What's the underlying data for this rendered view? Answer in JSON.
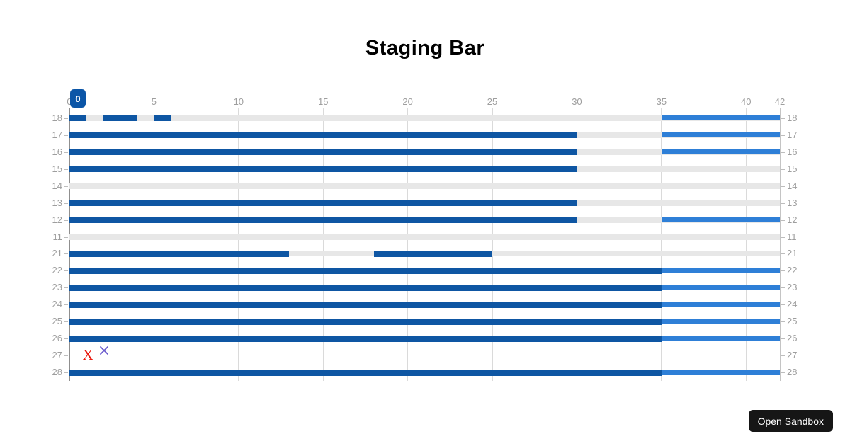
{
  "page": {
    "title": "Staging Bar"
  },
  "badge": {
    "label": "0"
  },
  "sandbox_button": {
    "label": "Open Sandbox"
  },
  "chart_data": {
    "type": "bar",
    "orientation": "horizontal",
    "title": "Staging Bar",
    "legend": "none",
    "grid": true,
    "x_axis": {
      "position": "top",
      "min": 0,
      "max": 42,
      "ticks": [
        0,
        5,
        10,
        15,
        20,
        25,
        30,
        35,
        40,
        42
      ]
    },
    "y_axis": {
      "position": "both",
      "categories": [
        "18",
        "17",
        "16",
        "15",
        "14",
        "13",
        "12",
        "11",
        "21",
        "22",
        "23",
        "24",
        "25",
        "26",
        "27",
        "28"
      ]
    },
    "colors": {
      "primary": "#0e56a3",
      "secondary": "#2e7fd7",
      "track": "#e7e7e7",
      "grid": "#dadada",
      "grid_end": "#c4c4c4",
      "axis": "#8f8f8f",
      "label": "#9e9e9e",
      "badge": "#0b55a7",
      "marker_red": "#e91409",
      "marker_purple": "#6a5acd"
    },
    "rows": [
      {
        "label": "18",
        "track": true,
        "primary": [
          [
            0,
            1
          ],
          [
            2,
            4
          ],
          [
            5,
            6
          ]
        ],
        "secondary": [
          [
            35,
            42
          ]
        ],
        "markers": []
      },
      {
        "label": "17",
        "track": true,
        "primary": [
          [
            0,
            30
          ]
        ],
        "secondary": [
          [
            35,
            42
          ]
        ],
        "markers": []
      },
      {
        "label": "16",
        "track": true,
        "primary": [
          [
            0,
            30
          ]
        ],
        "secondary": [
          [
            35,
            42
          ]
        ],
        "markers": []
      },
      {
        "label": "15",
        "track": true,
        "primary": [
          [
            0,
            30
          ]
        ],
        "secondary": [],
        "markers": []
      },
      {
        "label": "14",
        "track": true,
        "primary": [],
        "secondary": [],
        "markers": []
      },
      {
        "label": "13",
        "track": true,
        "primary": [
          [
            0,
            30
          ]
        ],
        "secondary": [],
        "markers": []
      },
      {
        "label": "12",
        "track": true,
        "primary": [
          [
            0,
            30
          ]
        ],
        "secondary": [
          [
            35,
            42
          ]
        ],
        "markers": []
      },
      {
        "label": "11",
        "track": true,
        "primary": [],
        "secondary": [],
        "markers": []
      },
      {
        "label": "21",
        "track": true,
        "primary": [
          [
            0,
            13
          ],
          [
            18,
            25
          ]
        ],
        "secondary": [],
        "markers": []
      },
      {
        "label": "22",
        "track": true,
        "primary": [
          [
            0,
            35
          ]
        ],
        "secondary": [
          [
            35,
            42
          ]
        ],
        "markers": []
      },
      {
        "label": "23",
        "track": true,
        "primary": [
          [
            0,
            35
          ]
        ],
        "secondary": [
          [
            35,
            42
          ]
        ],
        "markers": []
      },
      {
        "label": "24",
        "track": true,
        "primary": [
          [
            0,
            35
          ]
        ],
        "secondary": [
          [
            35,
            42
          ]
        ],
        "markers": []
      },
      {
        "label": "25",
        "track": true,
        "primary": [
          [
            0,
            35
          ]
        ],
        "secondary": [
          [
            35,
            42
          ]
        ],
        "markers": []
      },
      {
        "label": "26",
        "track": true,
        "primary": [
          [
            0,
            35
          ]
        ],
        "secondary": [
          [
            35,
            42
          ]
        ],
        "markers": []
      },
      {
        "label": "27",
        "track": false,
        "primary": [],
        "secondary": [],
        "markers": [
          {
            "glyph": "X",
            "color": "#e91409",
            "x": 1.1
          },
          {
            "glyph": "cross",
            "color": "#6a5acd",
            "x": 2.05
          }
        ]
      },
      {
        "label": "28",
        "track": true,
        "primary": [
          [
            0,
            35
          ]
        ],
        "secondary": [
          [
            35,
            42
          ]
        ],
        "markers": []
      }
    ]
  }
}
